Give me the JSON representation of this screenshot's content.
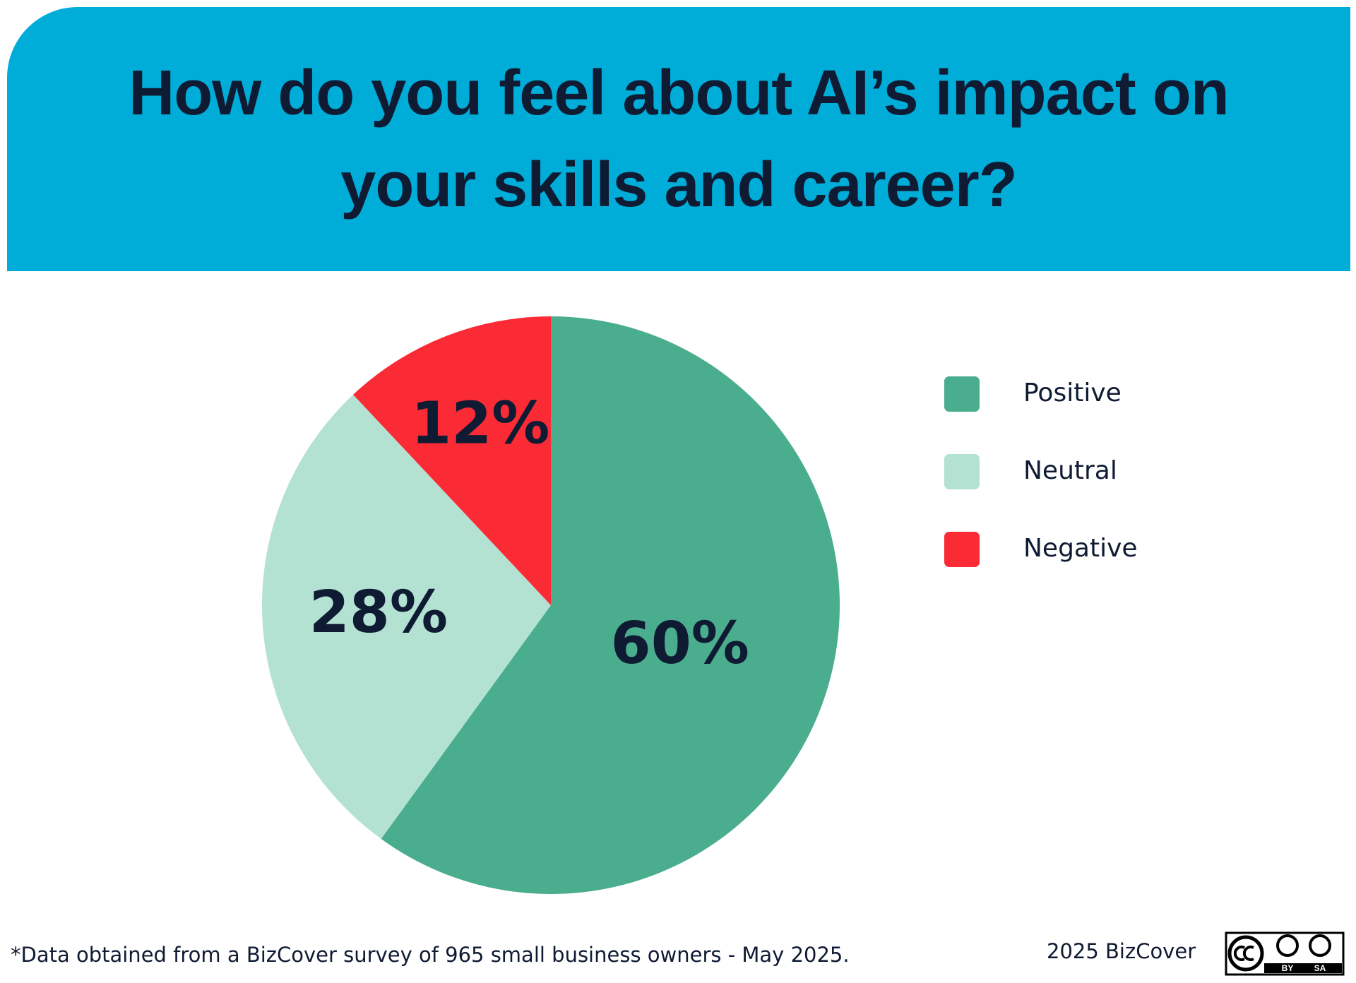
{
  "chart_data": {
    "type": "pie",
    "title": "How do you feel about AI’s impact on your skills and career?",
    "categories": [
      "Positive",
      "Neutral",
      "Negative"
    ],
    "values": [
      60,
      28,
      12
    ],
    "value_labels": [
      "60%",
      "28%",
      "12%"
    ],
    "colors": [
      "#4aad8d",
      "#b3e2d3",
      "#fb2b36"
    ],
    "legend": "right",
    "note": "*Data obtained from a BizCover survey of 965 small business owners - May 2025.",
    "credit": "2025 BizCover",
    "license_badge": [
      "BY",
      "SA"
    ]
  }
}
